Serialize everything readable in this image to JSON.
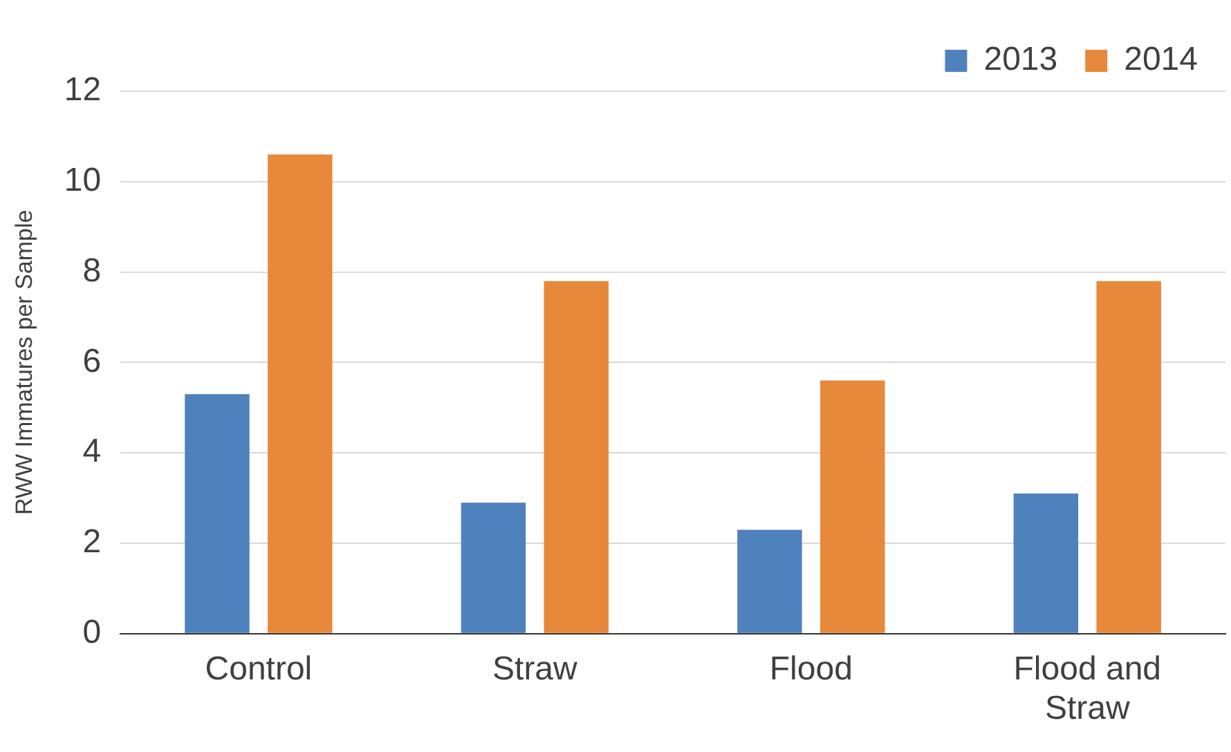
{
  "chart_data": {
    "type": "bar",
    "ylabel": "RWW Immatures per Sample",
    "categories": [
      "Control",
      "Straw",
      "Flood",
      "Flood and Straw"
    ],
    "series": [
      {
        "name": "2013",
        "color": "#4f81bd",
        "values": [
          5.3,
          2.9,
          2.3,
          3.1
        ]
      },
      {
        "name": "2014",
        "color": "#e8883a",
        "values": [
          10.6,
          7.8,
          5.6,
          7.8
        ]
      }
    ],
    "ylim": [
      0,
      12
    ],
    "yticks": [
      0,
      2,
      4,
      6,
      8,
      10,
      12
    ],
    "grid": "y",
    "legend": "top right"
  }
}
